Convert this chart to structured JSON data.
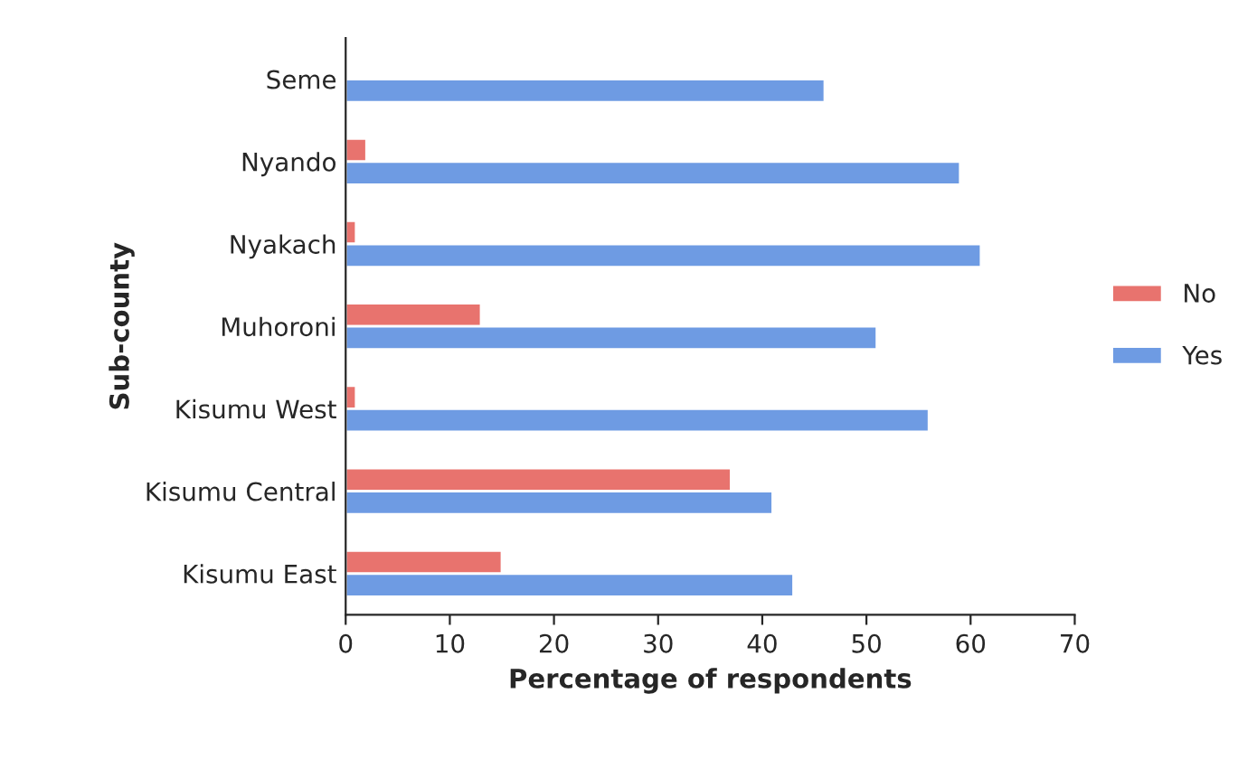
{
  "chart_data": {
    "type": "bar",
    "orientation": "horizontal",
    "xlabel": "Percentage of respondents",
    "ylabel": "Sub-county",
    "categories": [
      "Seme",
      "Nyando",
      "Nyakach",
      "Muhoroni",
      "Kisumu West",
      "Kisumu Central",
      "Kisumu East"
    ],
    "series": [
      {
        "name": "No",
        "color": "#e8736e",
        "values": [
          null,
          2,
          1,
          13,
          1,
          37,
          15
        ]
      },
      {
        "name": "Yes",
        "color": "#6e9be3",
        "values": [
          46,
          59,
          61,
          51,
          56,
          41,
          43
        ]
      }
    ],
    "xlim": [
      0,
      70
    ],
    "xticks": [
      0,
      10,
      20,
      30,
      40,
      50,
      60,
      70
    ],
    "grid": false,
    "legend": "right"
  }
}
